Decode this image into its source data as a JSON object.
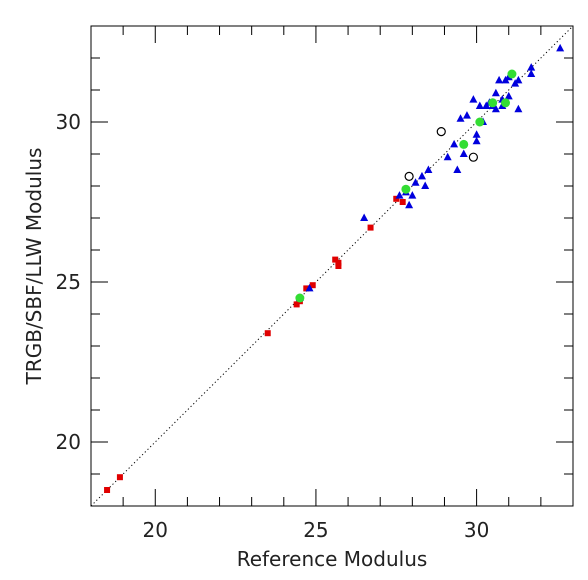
{
  "chart_data": {
    "type": "scatter",
    "title": "",
    "xlabel": "Reference Modulus",
    "ylabel": "TRGB/SBF/LLW Modulus",
    "xlim": [
      18,
      33
    ],
    "ylim": [
      18,
      33
    ],
    "x_major_ticks": [
      20,
      25,
      30
    ],
    "y_major_ticks": [
      20,
      25,
      30
    ],
    "x_tick_labels": [
      "20",
      "25",
      "30"
    ],
    "y_tick_labels": [
      "20",
      "25",
      "30"
    ],
    "grid": false,
    "legend": "none",
    "reference_line": {
      "style": "dotted",
      "from": [
        18,
        18
      ],
      "to": [
        33,
        33
      ]
    },
    "series": [
      {
        "marker": "filled-square",
        "color": "#e00000",
        "points": [
          [
            18.5,
            18.5
          ],
          [
            18.9,
            18.9
          ],
          [
            23.5,
            23.4
          ],
          [
            24.4,
            24.3
          ],
          [
            24.5,
            24.4
          ],
          [
            24.7,
            24.8
          ],
          [
            24.9,
            24.9
          ],
          [
            25.6,
            25.7
          ],
          [
            25.7,
            25.6
          ],
          [
            25.7,
            25.5
          ],
          [
            26.7,
            26.7
          ],
          [
            27.5,
            27.6
          ],
          [
            27.7,
            27.5
          ]
        ]
      },
      {
        "marker": "filled-triangle",
        "color": "#0000dd",
        "points": [
          [
            24.5,
            24.5
          ],
          [
            24.8,
            24.8
          ],
          [
            26.5,
            27.0
          ],
          [
            27.6,
            27.7
          ],
          [
            27.8,
            27.8
          ],
          [
            27.9,
            27.4
          ],
          [
            28.0,
            27.7
          ],
          [
            28.1,
            28.1
          ],
          [
            28.3,
            28.3
          ],
          [
            28.4,
            28.0
          ],
          [
            28.5,
            28.5
          ],
          [
            29.1,
            28.9
          ],
          [
            29.3,
            29.3
          ],
          [
            29.4,
            28.5
          ],
          [
            29.5,
            30.1
          ],
          [
            29.6,
            29.0
          ],
          [
            29.7,
            30.2
          ],
          [
            29.9,
            30.7
          ],
          [
            30.0,
            29.6
          ],
          [
            30.0,
            29.4
          ],
          [
            30.1,
            30.5
          ],
          [
            30.2,
            30.0
          ],
          [
            30.3,
            30.5
          ],
          [
            30.4,
            30.6
          ],
          [
            30.5,
            30.5
          ],
          [
            30.6,
            30.4
          ],
          [
            30.6,
            30.9
          ],
          [
            30.7,
            31.3
          ],
          [
            30.8,
            30.5
          ],
          [
            30.8,
            30.7
          ],
          [
            30.9,
            31.3
          ],
          [
            31.0,
            30.8
          ],
          [
            31.0,
            31.4
          ],
          [
            31.2,
            31.2
          ],
          [
            31.3,
            30.4
          ],
          [
            31.3,
            31.3
          ],
          [
            31.7,
            31.5
          ],
          [
            31.7,
            31.7
          ],
          [
            32.6,
            32.3
          ]
        ]
      },
      {
        "marker": "filled-circle",
        "color": "#33dd33",
        "points": [
          [
            24.5,
            24.5
          ],
          [
            27.8,
            27.9
          ],
          [
            29.6,
            29.3
          ],
          [
            30.1,
            30.0
          ],
          [
            30.5,
            30.6
          ],
          [
            30.9,
            30.6
          ],
          [
            31.1,
            31.5
          ]
        ]
      },
      {
        "marker": "open-circle",
        "color": "#000000",
        "points": [
          [
            27.9,
            28.3
          ],
          [
            28.9,
            29.7
          ],
          [
            29.9,
            28.9
          ]
        ]
      }
    ]
  }
}
